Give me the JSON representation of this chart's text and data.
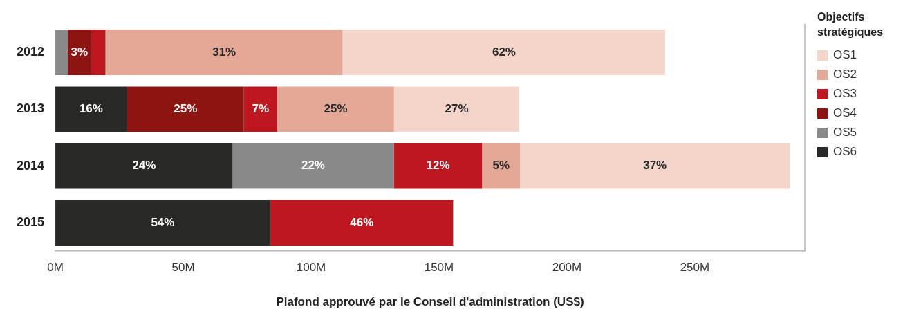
{
  "chart_data": {
    "type": "bar",
    "orientation": "horizontal",
    "stacked": true,
    "categories": [
      "2012",
      "2013",
      "2014",
      "2015"
    ],
    "xlabel": "Plafond approuvé par le Conseil d'administration (US$)",
    "legend_title": "Objectifs stratégiques",
    "legend": "right",
    "grid": false,
    "xlim": [
      0,
      293
    ],
    "xticks": [
      {
        "value": 0,
        "label": "0M"
      },
      {
        "value": 50,
        "label": "50M"
      },
      {
        "value": 100,
        "label": "100M"
      },
      {
        "value": 150,
        "label": "150M"
      },
      {
        "value": 200,
        "label": "200M"
      },
      {
        "value": 250,
        "label": "250M"
      }
    ],
    "series": [
      {
        "name": "OS6",
        "color": "#282826",
        "values": [
          null,
          28.0,
          69.3,
          84.0
        ]
      },
      {
        "name": "OS5",
        "color": "#898989",
        "values": [
          4.9,
          null,
          63.0,
          null
        ]
      },
      {
        "name": "OS4",
        "color": "#8c1512",
        "values": [
          9.0,
          45.7,
          null,
          null
        ]
      },
      {
        "name": "OS3",
        "color": "#bd1820",
        "values": [
          5.7,
          13.0,
          34.5,
          71.5
        ]
      },
      {
        "name": "OS2",
        "color": "#e4a896",
        "values": [
          92.7,
          45.7,
          14.9,
          null
        ]
      },
      {
        "name": "OS1",
        "color": "#f3d5ca",
        "values": [
          126.1,
          48.9,
          105.4,
          null
        ]
      }
    ],
    "annotations": [
      {
        "text": "3%",
        "x": 9.4,
        "y": "2012"
      },
      {
        "text": "31%",
        "x": 66.0,
        "y": "2012"
      },
      {
        "text": "62%",
        "x": 175.4,
        "y": "2012"
      },
      {
        "text": "16%",
        "x": 14.0,
        "y": "2013"
      },
      {
        "text": "25%",
        "x": 50.9,
        "y": "2013"
      },
      {
        "text": "7%",
        "x": 80.2,
        "y": "2013"
      },
      {
        "text": "25%",
        "x": 109.6,
        "y": "2013"
      },
      {
        "text": "27%",
        "x": 156.9,
        "y": "2013"
      },
      {
        "text": "24%",
        "x": 34.7,
        "y": "2014"
      },
      {
        "text": "22%",
        "x": 100.8,
        "y": "2014"
      },
      {
        "text": "12%",
        "x": 149.6,
        "y": "2014"
      },
      {
        "text": "5%",
        "x": 174.3,
        "y": "2014"
      },
      {
        "text": "37%",
        "x": 234.4,
        "y": "2014"
      },
      {
        "text": "54%",
        "x": 42.0,
        "y": "2015"
      },
      {
        "text": "46%",
        "x": 119.8,
        "y": "2015"
      }
    ]
  }
}
